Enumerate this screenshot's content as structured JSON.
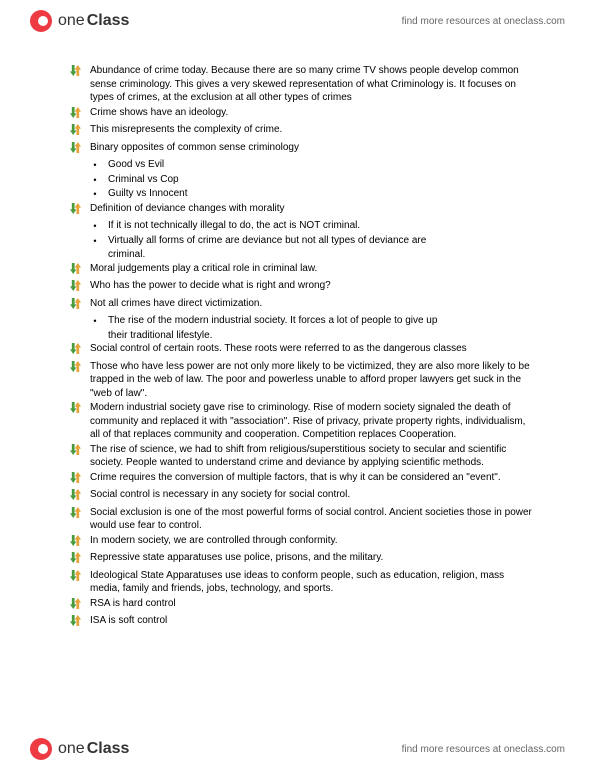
{
  "header": {
    "logo_text_1": "one",
    "logo_text_2": "Class",
    "link": "find more resources at oneclass.com"
  },
  "footer": {
    "logo_text_1": "one",
    "logo_text_2": "Class",
    "link": "find more resources at oneclass.com"
  },
  "colors": {
    "arrow_top": "#4a9b3e",
    "arrow_bottom": "#e8a23a",
    "logo_red": "#ee3a43",
    "text": "#000000",
    "link": "#666666"
  },
  "notes": [
    {
      "type": "arrow",
      "text": "Abundance of crime today. Because there are so many crime TV shows people develop common sense criminology. This gives a very skewed representation of what Criminology is. It focuses on types of crimes, at the exclusion at all other types of crimes"
    },
    {
      "type": "arrow",
      "text": "Crime shows have an ideology."
    },
    {
      "type": "arrow",
      "text": "This misrepresents the complexity of crime."
    },
    {
      "type": "arrow",
      "text": "Binary opposites of common sense criminology"
    },
    {
      "type": "dot",
      "text": "Good vs Evil"
    },
    {
      "type": "dot",
      "text": "Criminal vs Cop"
    },
    {
      "type": "dot",
      "text": "Guilty vs Innocent"
    },
    {
      "type": "arrow",
      "text": "Definition of deviance changes with morality"
    },
    {
      "type": "dot",
      "text": "If it is not technically illegal to do, the act is NOT criminal."
    },
    {
      "type": "dot",
      "text": "Virtually all forms of crime are deviance but not all types of deviance are"
    },
    {
      "type": "subline",
      "text": "criminal."
    },
    {
      "type": "arrow",
      "text": "Moral judgements play a critical role in criminal law."
    },
    {
      "type": "arrow",
      "text": "Who has the power to decide what is right and wrong?"
    },
    {
      "type": "arrow",
      "text": "Not all crimes have direct victimization."
    },
    {
      "type": "dot",
      "text": "The rise of the modern industrial society. It forces a lot of people to give up"
    },
    {
      "type": "subline",
      "text": "their traditional lifestyle."
    },
    {
      "type": "arrow",
      "text": "Social control of certain roots. These roots were referred to as the dangerous classes"
    },
    {
      "type": "arrow",
      "text": "Those who have less power are not only more likely to be victimized, they are also more likely to be trapped in the web of law. The poor and powerless unable to afford proper lawyers get suck in the \"web of law\"."
    },
    {
      "type": "arrow",
      "text": "Modern industrial society gave rise to criminology. Rise of modern society signaled the death of community and replaced it with \"association\". Rise of privacy, private property rights, individualism, all of that replaces community and cooperation. Competition replaces Cooperation."
    },
    {
      "type": "arrow",
      "text": "The rise of science, we had to shift from religious/superstitious society to secular and scientific society. People wanted to understand crime and deviance by applying scientific methods."
    },
    {
      "type": "arrow",
      "text": "Crime requires the conversion of multiple factors, that is why it can be considered an \"event\"."
    },
    {
      "type": "arrow",
      "text": "Social control is necessary in any society for social control."
    },
    {
      "type": "arrow",
      "text": "Social exclusion is one of the most powerful forms of social control. Ancient societies those in power would use fear to control."
    },
    {
      "type": "arrow",
      "text": "In modern society, we are controlled through conformity."
    },
    {
      "type": "arrow",
      "text": "Repressive state apparatuses use police, prisons, and the military."
    },
    {
      "type": "arrow",
      "text": "Ideological State Apparatuses use ideas to conform people, such as education, religion, mass media, family and friends, jobs, technology, and sports."
    },
    {
      "type": "arrow",
      "text": "RSA is hard control"
    },
    {
      "type": "arrow",
      "text": "ISA is soft control"
    }
  ]
}
